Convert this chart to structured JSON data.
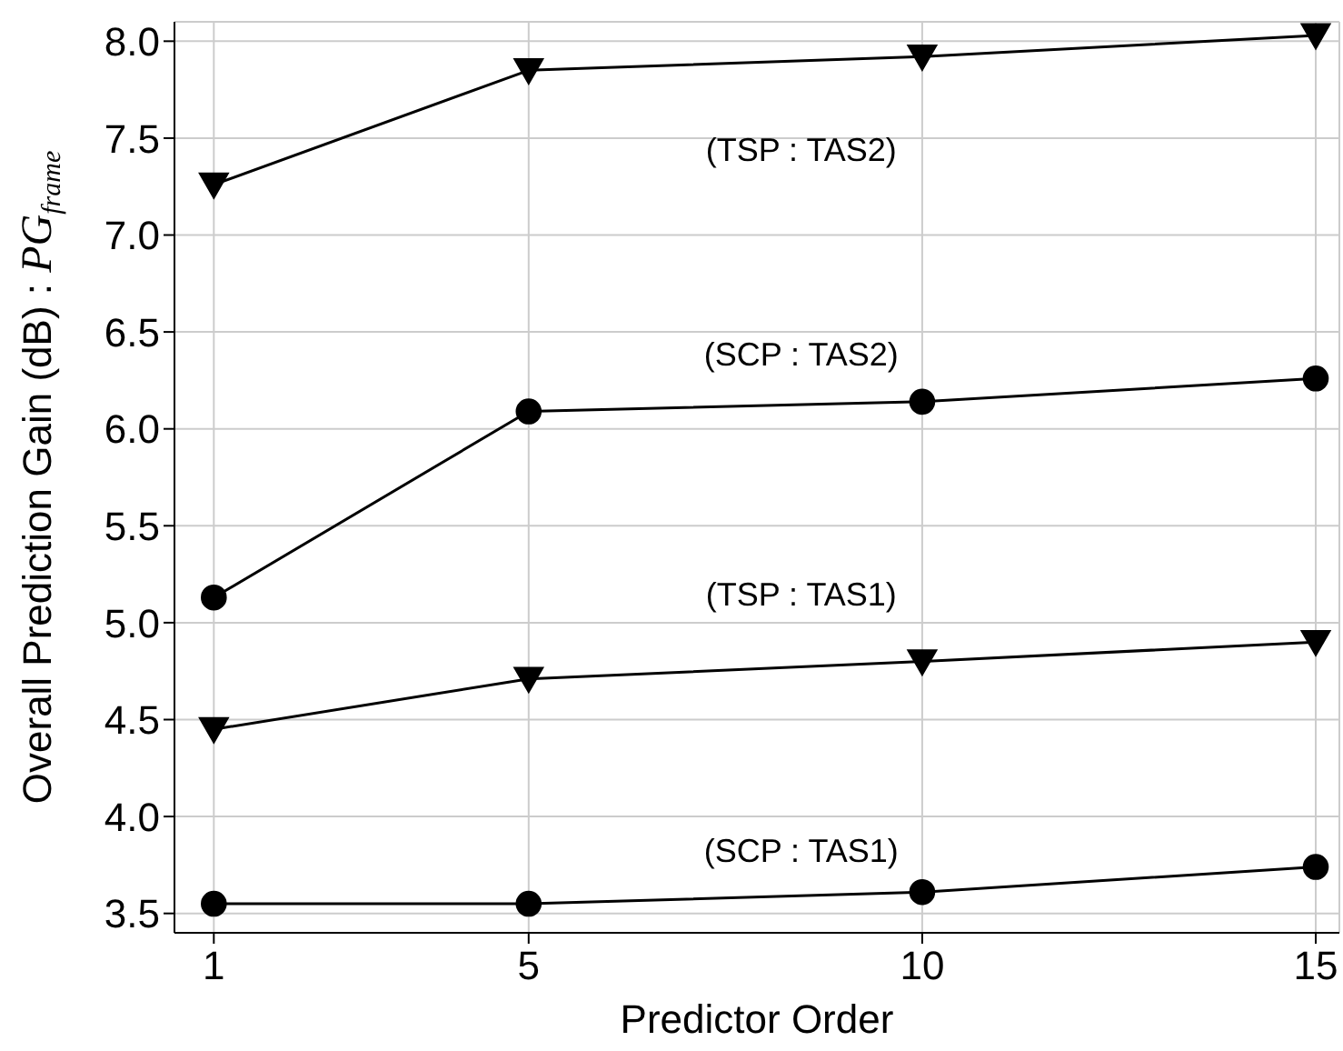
{
  "chart_data": {
    "type": "line",
    "xlabel": "Predictor Order",
    "ylabel": "Overall Prediction Gain (dB) : PG$_{frame}$",
    "x": [
      1,
      5,
      10,
      15
    ],
    "xlim": [
      0.5,
      15.3
    ],
    "xticks": [
      1,
      5,
      10,
      15
    ],
    "ylim": [
      3.4,
      8.1
    ],
    "yticks": [
      3.5,
      {
        "value": 4,
        "label": "4.0"
      },
      4.5,
      {
        "value": 5,
        "label": "5.0"
      },
      5.5,
      {
        "value": 6,
        "label": "6.0"
      },
      6.5,
      {
        "value": 7,
        "label": "7.0"
      },
      7.5,
      {
        "value": 8,
        "label": "8.0"
      }
    ],
    "grid": true,
    "legend": false,
    "line_style": "solid",
    "series": [
      {
        "name": "(TSP : TAS2)",
        "color": "#000000",
        "marker": "triangle",
        "values": [
          7.26,
          7.85,
          7.92,
          8.03
        ]
      },
      {
        "name": "(SCP : TAS2)",
        "color": "#000000",
        "marker": "circle",
        "values": [
          5.13,
          6.09,
          6.14,
          6.26
        ]
      },
      {
        "name": "(TSP : TAS1)",
        "color": "#000000",
        "marker": "triangle",
        "values": [
          4.45,
          4.71,
          4.8,
          4.9
        ]
      },
      {
        "name": "(SCP : TAS1)",
        "color": "#000000",
        "marker": "circle",
        "values": [
          3.55,
          3.55,
          3.61,
          3.74
        ]
      }
    ]
  }
}
